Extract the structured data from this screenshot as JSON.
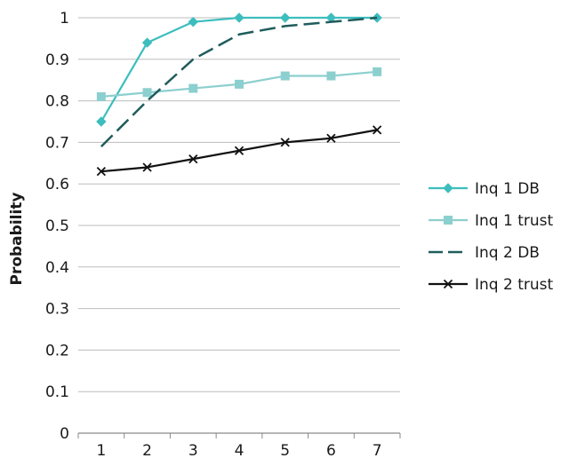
{
  "chart_data": {
    "type": "line",
    "title": "",
    "xlabel": "",
    "ylabel": "Probability",
    "x": [
      1,
      2,
      3,
      4,
      5,
      6,
      7
    ],
    "ylim": [
      0,
      1
    ],
    "yticks": [
      "0",
      "0.1",
      "0.2",
      "0.3",
      "0.4",
      "0.5",
      "0.6",
      "0.7",
      "0.8",
      "0.9",
      "1"
    ],
    "grid": "horizontal",
    "legend_position": "right",
    "series": [
      {
        "name": "Inq 1 DB",
        "values": [
          0.75,
          0.94,
          0.99,
          1.0,
          1.0,
          1.0,
          1.0
        ],
        "color": "#3dbdbd",
        "marker": "diamond",
        "dash": "solid"
      },
      {
        "name": "Inq 1 trust",
        "values": [
          0.81,
          0.82,
          0.83,
          0.84,
          0.86,
          0.86,
          0.87
        ],
        "color": "#8ccfcf",
        "marker": "square",
        "dash": "solid"
      },
      {
        "name": "Inq 2 DB",
        "values": [
          0.69,
          0.8,
          0.9,
          0.96,
          0.98,
          0.99,
          1.0
        ],
        "color": "#1f5c5c",
        "marker": "none",
        "dash": "dashed"
      },
      {
        "name": "Inq 2 trust",
        "values": [
          0.63,
          0.64,
          0.66,
          0.68,
          0.7,
          0.71,
          0.73
        ],
        "color": "#111111",
        "marker": "x",
        "dash": "solid"
      }
    ]
  }
}
